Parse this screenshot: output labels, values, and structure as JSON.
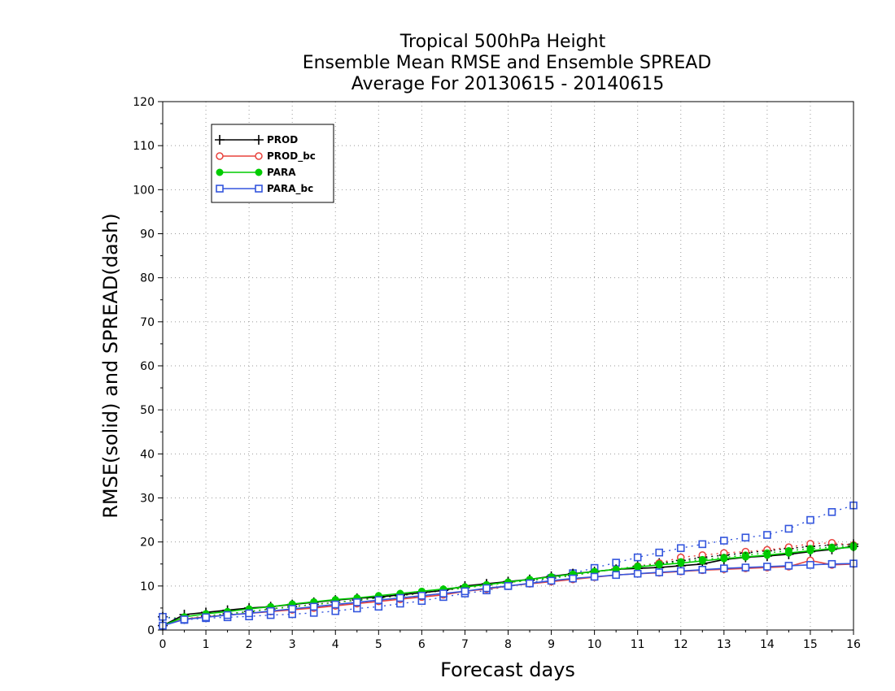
{
  "chart_data": {
    "type": "line",
    "title": [
      "Tropical 500hPa Height",
      "Ensemble Mean RMSE and Ensemble SPREAD",
      "Average For 20130615 - 20140615"
    ],
    "xlabel": "Forecast days",
    "ylabel": "RMSE(solid) and SPREAD(dash)",
    "xlim": [
      0,
      16
    ],
    "ylim": [
      0,
      120
    ],
    "x_ticks": [
      "0",
      "1",
      "2",
      "3",
      "4",
      "5",
      "6",
      "7",
      "8",
      "9",
      "10",
      "11",
      "12",
      "13",
      "14",
      "15",
      "16"
    ],
    "y_ticks": [
      "0",
      "10",
      "20",
      "30",
      "40",
      "50",
      "60",
      "70",
      "80",
      "90",
      "100",
      "110",
      "120"
    ],
    "grid": true,
    "legend_position": "top-left",
    "x": [
      0,
      0.5,
      1,
      1.5,
      2,
      2.5,
      3,
      3.5,
      4,
      4.5,
      5,
      5.5,
      6,
      6.5,
      7,
      7.5,
      8,
      8.5,
      9,
      9.5,
      10,
      10.5,
      11,
      11.5,
      12,
      12.5,
      13,
      13.5,
      14,
      14.5,
      15,
      15.5,
      16
    ],
    "series": [
      {
        "name": "PROD",
        "metric": "RMSE",
        "style": "solid",
        "marker": "plus",
        "color": "#000000",
        "values": [
          1.0,
          3.5,
          4.0,
          4.5,
          5.0,
          5.3,
          5.8,
          6.3,
          6.8,
          7.2,
          7.5,
          8.0,
          8.5,
          9.0,
          10.0,
          10.5,
          11.0,
          11.5,
          12.2,
          12.8,
          13.3,
          13.8,
          14.0,
          14.2,
          14.6,
          15.0,
          16.0,
          16.5,
          16.8,
          17.2,
          17.8,
          18.3,
          19.0
        ]
      },
      {
        "name": "PROD_bc",
        "metric": "RMSE",
        "style": "solid",
        "marker": "circle",
        "color": "#e8423c",
        "values": [
          1.0,
          2.5,
          3.0,
          3.4,
          3.8,
          4.2,
          4.6,
          5.0,
          5.5,
          6.0,
          6.5,
          7.0,
          7.5,
          8.0,
          8.8,
          9.3,
          10.0,
          10.5,
          11.0,
          11.5,
          12.0,
          12.5,
          12.8,
          13.0,
          13.3,
          13.6,
          13.8,
          14.0,
          14.2,
          14.4,
          15.8,
          14.8,
          15.0
        ]
      },
      {
        "name": "PARA",
        "metric": "RMSE",
        "style": "solid",
        "marker": "dot",
        "color": "#00cc00",
        "values": [
          1.0,
          3.0,
          3.7,
          4.2,
          4.8,
          5.3,
          5.9,
          6.4,
          6.9,
          7.3,
          7.8,
          8.3,
          8.8,
          9.3,
          9.8,
          10.3,
          10.9,
          11.5,
          12.1,
          12.7,
          13.3,
          13.8,
          14.3,
          14.8,
          15.2,
          15.7,
          16.2,
          16.6,
          17.0,
          17.5,
          18.0,
          18.5,
          18.8
        ]
      },
      {
        "name": "PARA_bc",
        "metric": "RMSE",
        "style": "solid",
        "marker": "square",
        "color": "#3355dd",
        "values": [
          1.0,
          2.4,
          2.9,
          3.4,
          3.8,
          4.3,
          4.8,
          5.3,
          5.8,
          6.3,
          6.8,
          7.3,
          7.8,
          8.3,
          8.8,
          9.5,
          10.0,
          10.6,
          11.2,
          11.7,
          12.1,
          12.5,
          12.8,
          13.1,
          13.4,
          13.7,
          14.0,
          14.2,
          14.4,
          14.6,
          14.8,
          15.0,
          15.1
        ]
      },
      {
        "name": "PROD",
        "metric": "SPREAD",
        "style": "dash",
        "marker": "plus",
        "color": "#000000",
        "values": [
          3.0,
          2.5,
          3.2,
          3.7,
          4.2,
          4.8,
          5.3,
          5.8,
          6.3,
          6.8,
          7.3,
          7.8,
          8.4,
          9.0,
          9.6,
          10.2,
          10.8,
          11.3,
          11.8,
          12.4,
          13.2,
          13.8,
          14.5,
          15.2,
          15.8,
          16.5,
          17.0,
          17.5,
          18.0,
          18.5,
          19.0,
          19.3,
          19.5
        ]
      },
      {
        "name": "PROD_bc",
        "metric": "SPREAD",
        "style": "dash",
        "marker": "circle",
        "color": "#e8423c",
        "values": [
          3.0,
          2.5,
          3.2,
          3.7,
          4.2,
          4.8,
          5.3,
          5.8,
          6.3,
          6.8,
          7.3,
          7.8,
          8.4,
          9.0,
          9.6,
          10.2,
          10.8,
          11.3,
          11.8,
          12.4,
          13.2,
          13.8,
          14.5,
          15.2,
          16.5,
          17.0,
          17.5,
          17.8,
          18.2,
          18.8,
          19.6,
          19.8,
          19.3
        ]
      },
      {
        "name": "PARA",
        "metric": "SPREAD",
        "style": "dash",
        "marker": "dot",
        "color": "#00cc00",
        "values": [
          3.0,
          2.5,
          3.2,
          3.7,
          4.2,
          4.8,
          5.3,
          5.8,
          6.3,
          6.8,
          7.3,
          7.8,
          8.4,
          9.0,
          9.6,
          10.2,
          10.8,
          11.3,
          11.8,
          12.4,
          13.2,
          13.8,
          14.5,
          15.0,
          15.5,
          16.0,
          16.5,
          17.0,
          17.5,
          18.0,
          18.5,
          18.8,
          19.2
        ]
      },
      {
        "name": "PARA_bc",
        "metric": "SPREAD",
        "style": "dash",
        "marker": "square",
        "color": "#3355dd",
        "values": [
          3.0,
          2.3,
          2.7,
          2.9,
          3.1,
          3.4,
          3.6,
          3.9,
          4.3,
          4.9,
          5.3,
          6.0,
          6.6,
          7.5,
          8.3,
          9.0,
          10.0,
          10.6,
          11.8,
          12.9,
          14.1,
          15.3,
          16.5,
          17.6,
          18.6,
          19.5,
          20.3,
          21.0,
          21.6,
          23.0,
          25.0,
          26.8,
          28.3
        ]
      }
    ]
  }
}
